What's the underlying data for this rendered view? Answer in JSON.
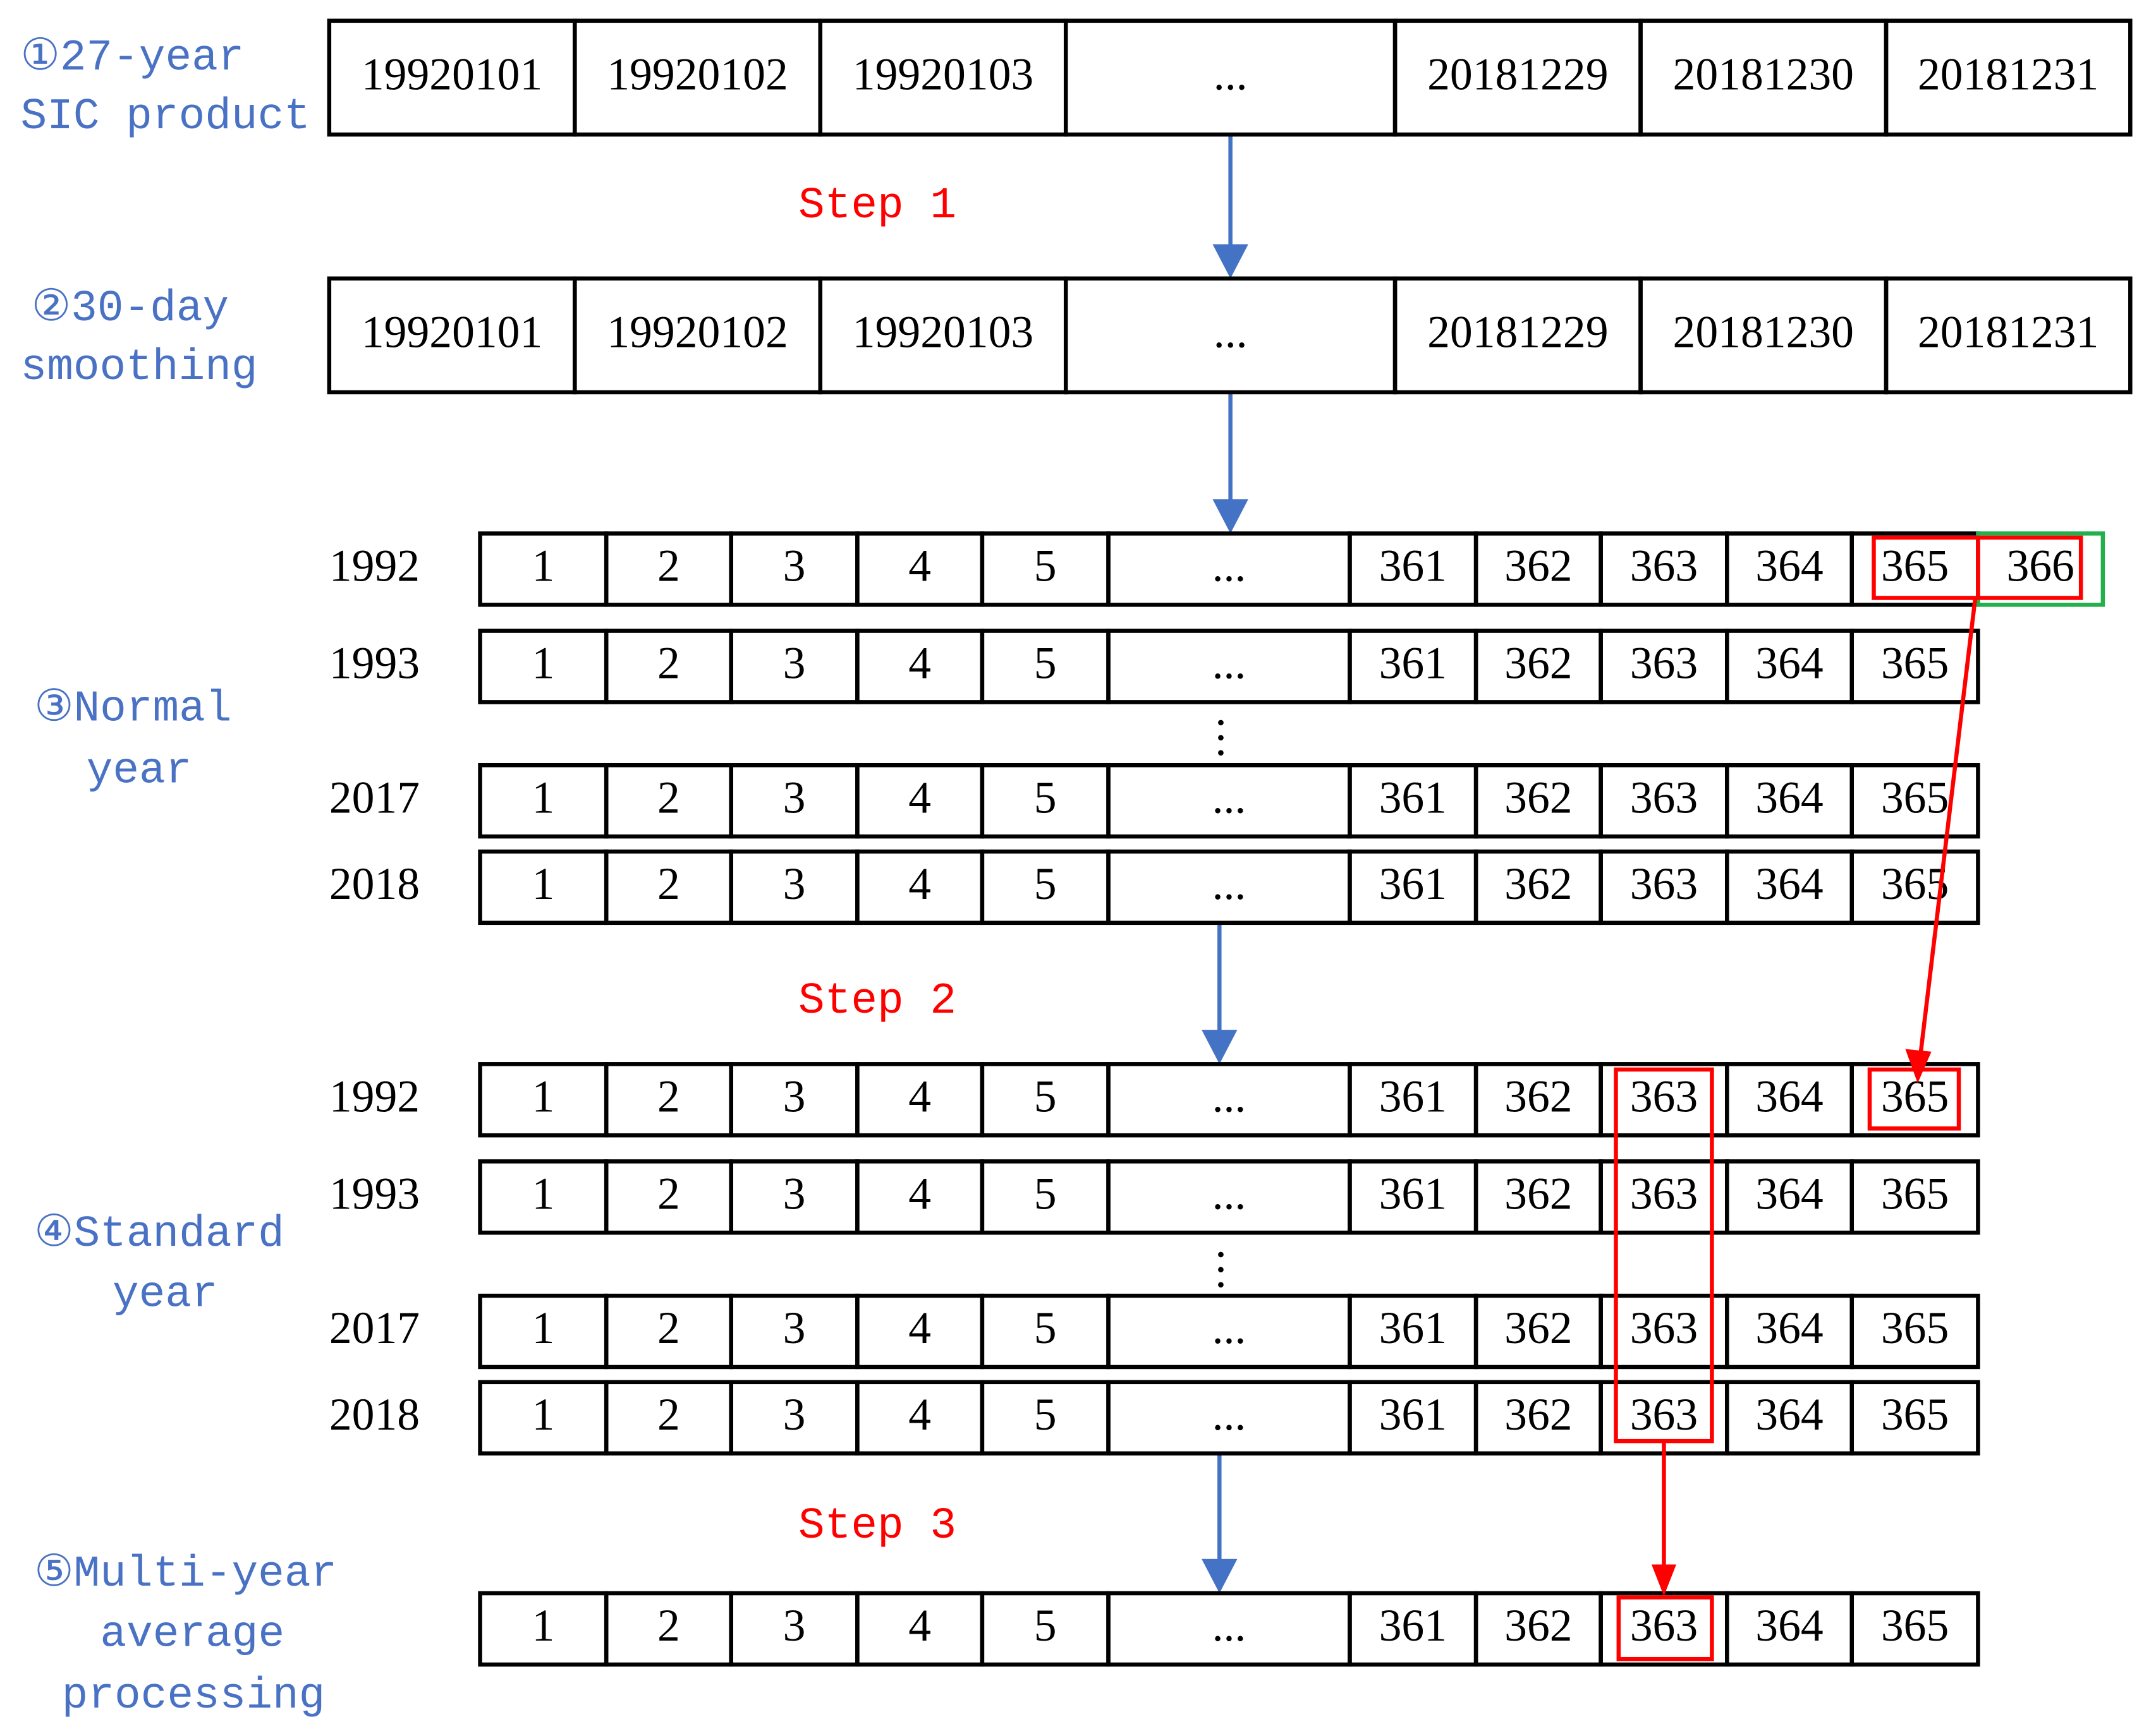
{
  "steps": [
    "Step 1",
    "Step 2",
    "Step 3"
  ],
  "stages": [
    {
      "label": [
        "①27-year",
        "SIC product"
      ],
      "rows": [
        {
          "cells": [
            "19920101",
            "19920102",
            "19920103",
            "...",
            "20181229",
            "20181230",
            "20181231"
          ]
        }
      ]
    },
    {
      "label": [
        "②30-day",
        "smoothing"
      ],
      "rows": [
        {
          "cells": [
            "19920101",
            "19920102",
            "19920103",
            "...",
            "20181229",
            "20181230",
            "20181231"
          ]
        }
      ]
    },
    {
      "label": [
        "③Normal",
        "year"
      ],
      "rows": [
        {
          "year": "1992",
          "cells": [
            "1",
            "2",
            "3",
            "4",
            "5",
            "...",
            "361",
            "362",
            "363",
            "364",
            "365",
            "366"
          ]
        },
        {
          "year": "1993",
          "cells": [
            "1",
            "2",
            "3",
            "4",
            "5",
            "...",
            "361",
            "362",
            "363",
            "364",
            "365"
          ]
        },
        {
          "year": "2017",
          "cells": [
            "1",
            "2",
            "3",
            "4",
            "5",
            "...",
            "361",
            "362",
            "363",
            "364",
            "365"
          ]
        },
        {
          "year": "2018",
          "cells": [
            "1",
            "2",
            "3",
            "4",
            "5",
            "...",
            "361",
            "362",
            "363",
            "364",
            "365"
          ]
        }
      ]
    },
    {
      "label": [
        "④Standard",
        "year"
      ],
      "rows": [
        {
          "year": "1992",
          "cells": [
            "1",
            "2",
            "3",
            "4",
            "5",
            "...",
            "361",
            "362",
            "363",
            "364",
            "365"
          ]
        },
        {
          "year": "1993",
          "cells": [
            "1",
            "2",
            "3",
            "4",
            "5",
            "...",
            "361",
            "362",
            "363",
            "364",
            "365"
          ]
        },
        {
          "year": "2017",
          "cells": [
            "1",
            "2",
            "3",
            "4",
            "5",
            "...",
            "361",
            "362",
            "363",
            "364",
            "365"
          ]
        },
        {
          "year": "2018",
          "cells": [
            "1",
            "2",
            "3",
            "4",
            "5",
            "...",
            "361",
            "362",
            "363",
            "364",
            "365"
          ]
        }
      ]
    },
    {
      "label": [
        "⑤Multi-year",
        "average",
        "processing"
      ],
      "rows": [
        {
          "cells": [
            "1",
            "2",
            "3",
            "4",
            "5",
            "...",
            "361",
            "362",
            "363",
            "364",
            "365"
          ]
        }
      ]
    }
  ]
}
